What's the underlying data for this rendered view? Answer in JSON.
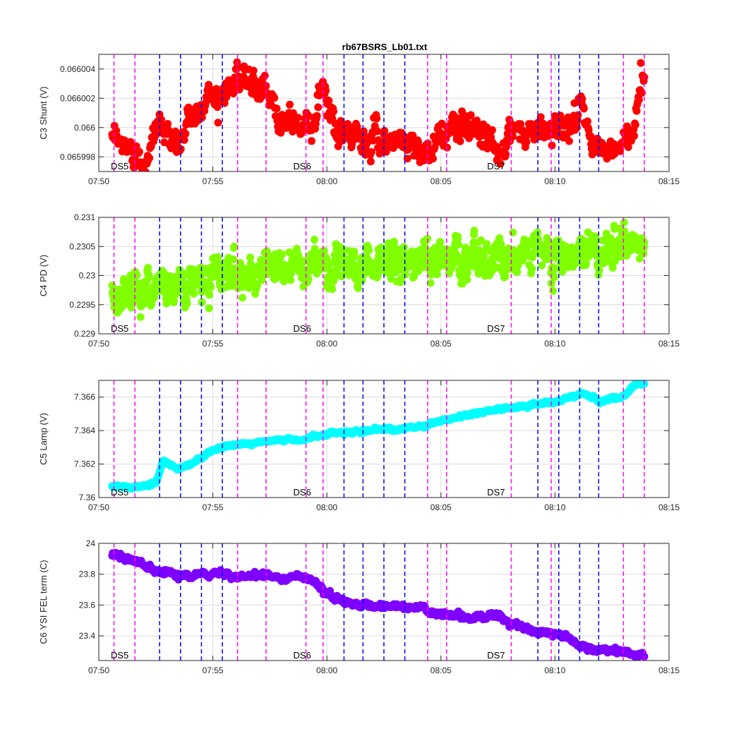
{
  "chart_data": {
    "type": "scatter",
    "title": "rb67BSRS_Lb01.txt",
    "x_ticks": [
      "07:50",
      "07:55",
      "08:00",
      "08:05",
      "08:10",
      "08:15"
    ],
    "x_range": [
      "07:50",
      "08:15"
    ],
    "grid": true,
    "vlines": {
      "magenta": [
        "07:50:40",
        "07:51:35",
        "07:56:05",
        "07:57:20",
        "07:59:05",
        "07:59:50",
        "08:04:25",
        "08:05:15",
        "08:08:05",
        "08:09:50",
        "08:13:00",
        "08:13:55"
      ],
      "blue": [
        "07:52:40",
        "07:53:35",
        "07:54:30",
        "07:55:25",
        "08:00:45",
        "08:01:35",
        "08:02:30",
        "08:03:25",
        "08:09:15",
        "08:10:10",
        "08:11:05",
        "08:11:55"
      ]
    },
    "ds_labels": [
      {
        "text": "DS5",
        "x": "07:50:55"
      },
      {
        "text": "DS6",
        "x": "07:58:55"
      },
      {
        "text": "DS7",
        "x": "08:07:25"
      }
    ],
    "panels": [
      {
        "ylabel": "C3 Shunt (V)",
        "color": "#ff0000",
        "ylim": [
          0.065997,
          0.066005
        ],
        "yticks": [
          0.065998,
          0.066,
          0.066002,
          0.066004
        ],
        "ytick_labels": [
          "0.065998",
          "0.066",
          "0.066002",
          "0.066004"
        ],
        "noise": 6e-07,
        "trend": [
          [
            "07:50:35",
            0.065999
          ],
          [
            "07:51:20",
            0.0659985
          ],
          [
            "07:52:00",
            0.0659978
          ],
          [
            "07:52:40",
            0.0660003
          ],
          [
            "07:53:30",
            0.0659988
          ],
          [
            "07:54:00",
            0.0660005
          ],
          [
            "07:54:50",
            0.0660021
          ],
          [
            "07:55:40",
            0.0660028
          ],
          [
            "07:56:10",
            0.0660037
          ],
          [
            "07:57:00",
            0.0660023
          ],
          [
            "07:58:00",
            0.0660012
          ],
          [
            "07:58:40",
            0.0660001
          ],
          [
            "07:59:20",
            0.0660006
          ],
          [
            "07:59:55",
            0.0660024
          ],
          [
            "08:00:20",
            0.0659996
          ],
          [
            "08:01:30",
            0.0659991
          ],
          [
            "08:02:30",
            0.0659993
          ],
          [
            "08:03:30",
            0.0659991
          ],
          [
            "08:04:30",
            0.0659985
          ],
          [
            "08:05:30",
            0.0659998
          ],
          [
            "08:06:30",
            0.0660004
          ],
          [
            "08:07:30",
            0.0659986
          ],
          [
            "08:08:30",
            0.0659994
          ],
          [
            "08:09:30",
            0.0659998
          ],
          [
            "08:10:30",
            0.0660003
          ],
          [
            "08:11:10",
            0.0660008
          ],
          [
            "08:11:40",
            0.0659988
          ],
          [
            "08:12:30",
            0.0659982
          ],
          [
            "08:13:20",
            0.0659993
          ],
          [
            "08:13:40",
            0.0660025
          ],
          [
            "08:13:55",
            0.0660031
          ]
        ]
      },
      {
        "ylabel": "C4 PD (V)",
        "color": "#80ff00",
        "ylim": [
          0.229,
          0.231
        ],
        "yticks": [
          0.229,
          0.2295,
          0.23,
          0.2305,
          0.231
        ],
        "ytick_labels": [
          "0.229",
          "0.2295",
          "0.23",
          "0.2305",
          "0.231"
        ],
        "noise": 0.00018,
        "trend": [
          [
            "07:50:35",
            0.22968
          ],
          [
            "07:52:00",
            0.22978
          ],
          [
            "07:54:00",
            0.22992
          ],
          [
            "07:55:00",
            0.23005
          ],
          [
            "07:58:00",
            0.23012
          ],
          [
            "08:00:00",
            0.23018
          ],
          [
            "08:03:00",
            0.23022
          ],
          [
            "08:05:00",
            0.23028
          ],
          [
            "08:08:00",
            0.23035
          ],
          [
            "08:11:00",
            0.23042
          ],
          [
            "08:13:55",
            0.23048
          ]
        ]
      },
      {
        "ylabel": "C5 Lamp (V)",
        "color": "#00ffff",
        "ylim": [
          7.36,
          7.367
        ],
        "yticks": [
          7.36,
          7.362,
          7.364,
          7.366
        ],
        "ytick_labels": [
          "7.36",
          "7.362",
          "7.364",
          "7.366"
        ],
        "noise": 6e-05,
        "trend": [
          [
            "07:50:35",
            7.3607
          ],
          [
            "07:51:30",
            7.3606
          ],
          [
            "07:52:30",
            7.3609
          ],
          [
            "07:52:50",
            7.3621
          ],
          [
            "07:53:30",
            7.3617
          ],
          [
            "07:54:00",
            7.362
          ],
          [
            "07:55:00",
            7.3628
          ],
          [
            "07:56:00",
            7.3632
          ],
          [
            "07:58:00",
            7.3634
          ],
          [
            "07:59:00",
            7.3635
          ],
          [
            "08:00:00",
            7.3638
          ],
          [
            "08:02:00",
            7.364
          ],
          [
            "08:04:00",
            7.3642
          ],
          [
            "08:06:00",
            7.3649
          ],
          [
            "08:08:00",
            7.3654
          ],
          [
            "08:10:00",
            7.3657
          ],
          [
            "08:11:10",
            7.3662
          ],
          [
            "08:12:00",
            7.3658
          ],
          [
            "08:13:00",
            7.366
          ],
          [
            "08:13:30",
            7.3668
          ],
          [
            "08:13:55",
            7.3668
          ]
        ]
      },
      {
        "ylabel": "C6 YSI FEL term (C)",
        "color": "#8000ff",
        "ylim": [
          23.24,
          24.0
        ],
        "yticks": [
          23.4,
          23.6,
          23.8,
          24.0
        ],
        "ytick_labels": [
          "23.4",
          "23.6",
          "23.8",
          "24"
        ],
        "noise": 0.012,
        "trend": [
          [
            "07:50:35",
            23.93
          ],
          [
            "07:51:30",
            23.89
          ],
          [
            "07:52:40",
            23.82
          ],
          [
            "07:54:00",
            23.78
          ],
          [
            "07:55:00",
            23.81
          ],
          [
            "07:56:00",
            23.79
          ],
          [
            "07:57:00",
            23.8
          ],
          [
            "07:58:00",
            23.77
          ],
          [
            "07:59:00",
            23.8
          ],
          [
            "07:59:40",
            23.72
          ],
          [
            "08:00:30",
            23.63
          ],
          [
            "08:01:30",
            23.6
          ],
          [
            "08:02:30",
            23.59
          ],
          [
            "08:03:30",
            23.6
          ],
          [
            "08:04:00",
            23.58
          ],
          [
            "08:05:00",
            23.54
          ],
          [
            "08:06:00",
            23.52
          ],
          [
            "08:07:30",
            23.52
          ],
          [
            "08:08:30",
            23.46
          ],
          [
            "08:09:30",
            23.42
          ],
          [
            "08:10:30",
            23.4
          ],
          [
            "08:11:10",
            23.33
          ],
          [
            "08:12:00",
            23.31
          ],
          [
            "08:13:00",
            23.3
          ],
          [
            "08:13:55",
            23.26
          ]
        ]
      }
    ]
  }
}
